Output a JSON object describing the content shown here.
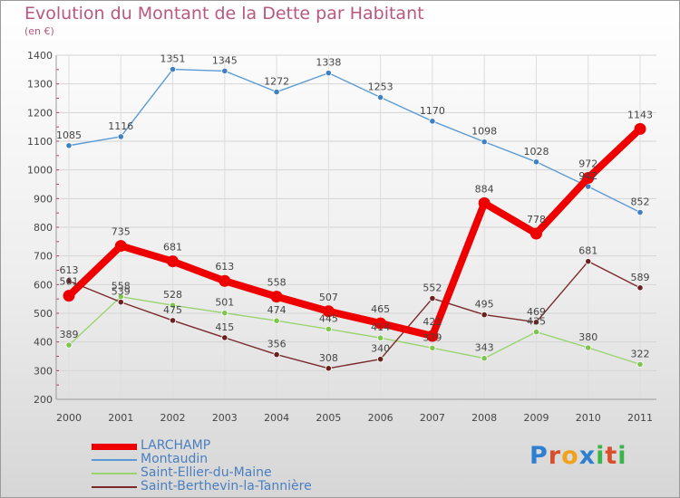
{
  "title": "Evolution du Montant de la Dette par Habitant",
  "subtitle": "(en €)",
  "logo": {
    "text": "Proxiti",
    "colors": [
      "#2f7fd0",
      "#d94f2a",
      "#f0a21c",
      "#2f7fd0",
      "#3bb54a",
      "#d94f2a",
      "#3bb54a"
    ]
  },
  "chart_data": {
    "type": "line",
    "x": [
      "2000",
      "2001",
      "2002",
      "2003",
      "2004",
      "2005",
      "2006",
      "2007",
      "2008",
      "2009",
      "2010",
      "2011"
    ],
    "ylim": [
      200,
      1400
    ],
    "yticks": [
      "200",
      "300",
      "400",
      "500",
      "600",
      "700",
      "800",
      "900",
      "1000",
      "1100",
      "1200",
      "1300",
      "1400"
    ],
    "grid": true,
    "legend_position": "bottom-left",
    "series": [
      {
        "name": "Montaudin",
        "color": "#5b9bd5",
        "dot": "#3f7fc2",
        "width": 1.4,
        "r": 3.2,
        "values": [
          1085,
          1116,
          1351,
          1345,
          1272,
          1338,
          1253,
          1170,
          1098,
          1028,
          942,
          852
        ],
        "labels": [
          "1085",
          "1116",
          "1351",
          "1345",
          "1272",
          "1338",
          "1253",
          "1170",
          "1098",
          "1028",
          "942",
          "852"
        ]
      },
      {
        "name": "Saint-Ellier-du-Maine",
        "color": "#9ad46f",
        "dot": "#7ec44e",
        "width": 1.4,
        "r": 3.2,
        "values": [
          389,
          558,
          528,
          501,
          474,
          445,
          414,
          379,
          343,
          435,
          380,
          322
        ],
        "labels": [
          "389",
          "558",
          "528",
          "501",
          "474",
          "445",
          "414",
          "379",
          "343",
          "435",
          "380",
          "322"
        ]
      },
      {
        "name": "Saint-Berthevin-la-Tannière",
        "color": "#7a2a2a",
        "dot": "#6b1f1f",
        "width": 1.4,
        "r": 3.2,
        "values": [
          613,
          539,
          475,
          415,
          356,
          308,
          340,
          552,
          495,
          469,
          681,
          589
        ],
        "labels": [
          "613",
          "539",
          "475",
          "415",
          "356",
          "308",
          "340",
          "552",
          "495",
          "469",
          "681",
          "589"
        ]
      },
      {
        "name": "LARCHAMP",
        "color": "#ee0000",
        "dot": "#ee0000",
        "width": 8,
        "r": 6.5,
        "values": [
          561,
          735,
          681,
          613,
          558,
          507,
          465,
          421,
          884,
          778,
          972,
          1143
        ],
        "labels": [
          "561",
          "735",
          "681",
          "613",
          "558",
          "507",
          "465",
          "421",
          "884",
          "778",
          "972",
          "1143"
        ]
      }
    ]
  },
  "legend": [
    {
      "name": "LARCHAMP",
      "color": "#ee0000",
      "thickness": 7
    },
    {
      "name": "Montaudin",
      "color": "#5b9bd5",
      "thickness": 1.5
    },
    {
      "name": "Saint-Ellier-du-Maine",
      "color": "#9ad46f",
      "thickness": 1.5
    },
    {
      "name": "Saint-Berthevin-la-Tannière",
      "color": "#7a2a2a",
      "thickness": 1.5
    }
  ]
}
